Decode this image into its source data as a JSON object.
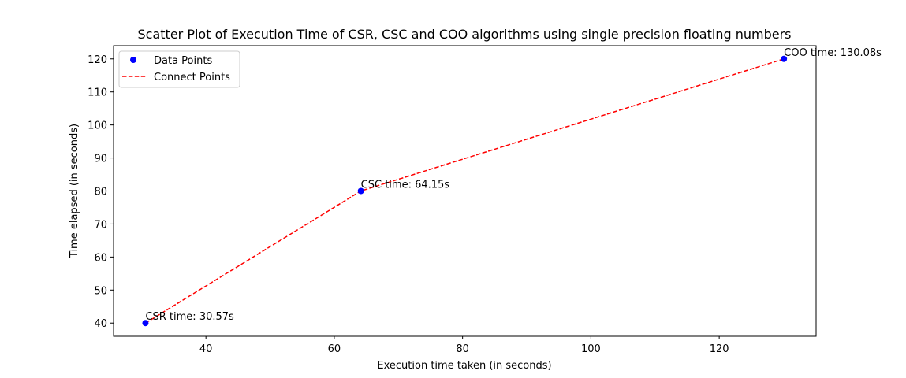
{
  "chart_data": {
    "type": "scatter",
    "title": "Scatter Plot of Execution Time of CSR, CSC and COO algorithms using single precision floating numbers",
    "xlabel": "Execution time taken (in seconds)",
    "ylabel": "Time elapsed (in seconds)",
    "xlim": [
      25.6,
      135.1
    ],
    "ylim": [
      36,
      124
    ],
    "xticks": [
      40,
      60,
      80,
      100,
      120
    ],
    "yticks": [
      40,
      50,
      60,
      70,
      80,
      90,
      100,
      110,
      120
    ],
    "grid": false,
    "legend_position": "top-left",
    "series": [
      {
        "name": "Data Points",
        "kind": "scatter",
        "color": "#0000ff",
        "x": [
          30.57,
          64.15,
          130.08
        ],
        "y": [
          40,
          80,
          120
        ]
      },
      {
        "name": "Connect Points",
        "kind": "line",
        "style": "dashed",
        "color": "#ff0000",
        "x": [
          30.57,
          64.15,
          130.08
        ],
        "y": [
          40,
          80,
          120
        ]
      }
    ],
    "annotations": [
      {
        "text": "CSR time: 30.57s",
        "x": 30.57,
        "y": 40
      },
      {
        "text": "CSC time: 64.15s",
        "x": 64.15,
        "y": 80
      },
      {
        "text": "COO time: 130.08s",
        "x": 130.08,
        "y": 120
      }
    ]
  }
}
